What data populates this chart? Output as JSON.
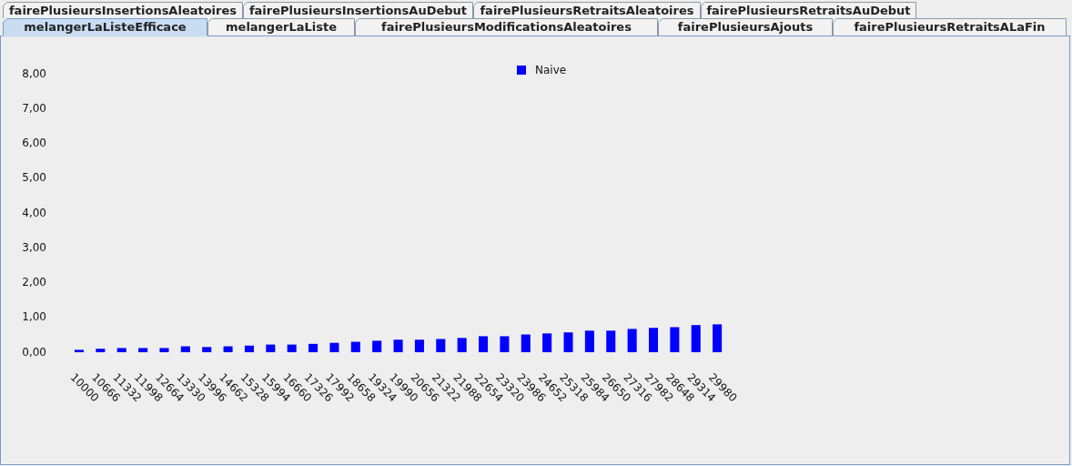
{
  "chart_data": {
    "type": "bar",
    "title": "melangerLaListeEfficace",
    "annotations": [
      "fairePlusieursInsertionsAleatoires",
      "fairePlusieursInsertionsAuDebut",
      "fairePlusieursRetraitsAleatoires",
      "fairePlusieursRetraitsAuDebut",
      "melangerLaListe",
      "fairePlusieursModificationsAleatoires",
      "fairePlusieursAjouts",
      "fairePlusieursRetraitsALaFin"
    ],
    "categories": [
      "10000",
      "10666",
      "11332",
      "11998",
      "12664",
      "13330",
      "13996",
      "14662",
      "15328",
      "15994",
      "16660",
      "17326",
      "17992",
      "18658",
      "19324",
      "19990",
      "20656",
      "21322",
      "21988",
      "22654",
      "23320",
      "23986",
      "24652",
      "25318",
      "25984",
      "26650",
      "27316",
      "27982",
      "28648",
      "29314",
      "29980"
    ],
    "series": [
      {
        "name": "Naive",
        "color": "#0000ff",
        "values": [
          0.07,
          0.1,
          0.12,
          0.12,
          0.12,
          0.17,
          0.15,
          0.17,
          0.19,
          0.22,
          0.22,
          0.24,
          0.27,
          0.3,
          0.33,
          0.36,
          0.36,
          0.38,
          0.41,
          0.46,
          0.46,
          0.51,
          0.54,
          0.57,
          0.62,
          0.62,
          0.67,
          0.7,
          0.72,
          0.78,
          0.8
        ]
      }
    ],
    "ylim": [
      0,
      8
    ],
    "yticks": [
      {
        "value": 0,
        "label": "0,00"
      },
      {
        "value": 1,
        "label": "1,00"
      },
      {
        "value": 2,
        "label": "2,00"
      },
      {
        "value": 3,
        "label": "3,00"
      },
      {
        "value": 4,
        "label": "4,00"
      },
      {
        "value": 5,
        "label": "5,00"
      },
      {
        "value": 6,
        "label": "6,00"
      },
      {
        "value": 7,
        "label": "7,00"
      },
      {
        "value": 8,
        "label": "8,00"
      }
    ],
    "legend": "top"
  }
}
